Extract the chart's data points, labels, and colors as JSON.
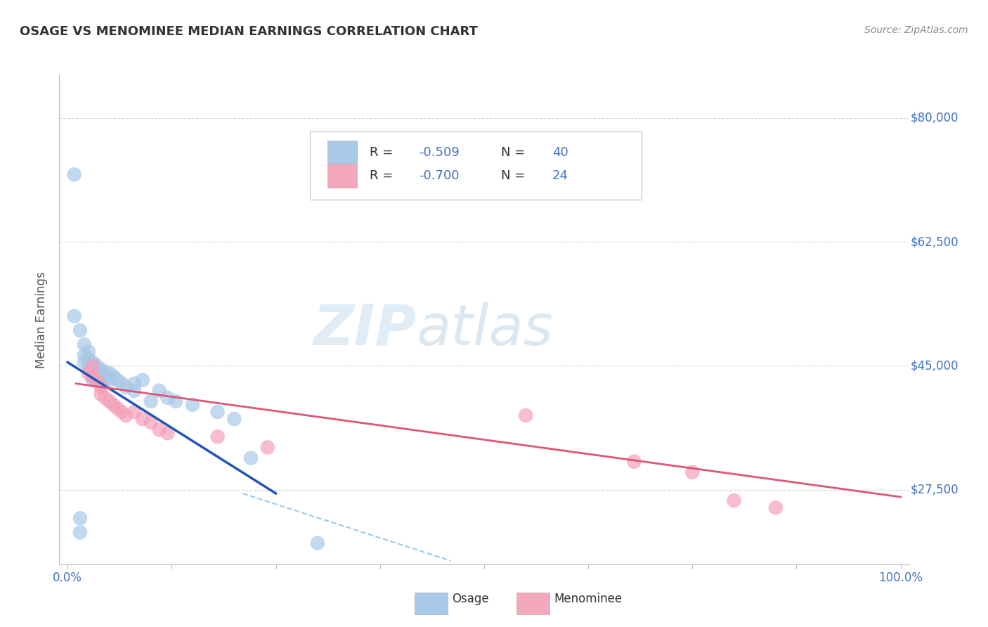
{
  "title": "OSAGE VS MENOMINEE MEDIAN EARNINGS CORRELATION CHART",
  "source": "Source: ZipAtlas.com",
  "ylabel": "Median Earnings",
  "yticks": [
    27500,
    45000,
    62500,
    80000
  ],
  "ytick_labels": [
    "$27,500",
    "$45,000",
    "$62,500",
    "$80,000"
  ],
  "ylim": [
    17000,
    86000
  ],
  "xlim": [
    -0.01,
    1.01
  ],
  "xtick_positions": [
    0.0,
    0.125,
    0.25,
    0.375,
    0.5,
    0.625,
    0.75,
    0.875,
    1.0
  ],
  "watermark_zip": "ZIP",
  "watermark_atlas": "atlas",
  "osage_points": [
    [
      0.008,
      72000
    ],
    [
      0.008,
      52000
    ],
    [
      0.015,
      50000
    ],
    [
      0.02,
      48000
    ],
    [
      0.02,
      46500
    ],
    [
      0.02,
      45500
    ],
    [
      0.025,
      47000
    ],
    [
      0.025,
      46000
    ],
    [
      0.025,
      45000
    ],
    [
      0.03,
      45500
    ],
    [
      0.03,
      44500
    ],
    [
      0.03,
      43500
    ],
    [
      0.03,
      43000
    ],
    [
      0.035,
      45000
    ],
    [
      0.035,
      44000
    ],
    [
      0.04,
      44500
    ],
    [
      0.04,
      43500
    ],
    [
      0.04,
      42500
    ],
    [
      0.045,
      44000
    ],
    [
      0.045,
      43000
    ],
    [
      0.05,
      44000
    ],
    [
      0.05,
      43000
    ],
    [
      0.055,
      43500
    ],
    [
      0.06,
      43000
    ],
    [
      0.065,
      42500
    ],
    [
      0.07,
      42000
    ],
    [
      0.08,
      42500
    ],
    [
      0.08,
      41500
    ],
    [
      0.09,
      43000
    ],
    [
      0.1,
      40000
    ],
    [
      0.11,
      41500
    ],
    [
      0.12,
      40500
    ],
    [
      0.13,
      40000
    ],
    [
      0.15,
      39500
    ],
    [
      0.18,
      38500
    ],
    [
      0.2,
      37500
    ],
    [
      0.015,
      23500
    ],
    [
      0.015,
      21500
    ],
    [
      0.22,
      32000
    ],
    [
      0.3,
      20000
    ]
  ],
  "menominee_points": [
    [
      0.025,
      44000
    ],
    [
      0.03,
      45000
    ],
    [
      0.03,
      43500
    ],
    [
      0.035,
      43000
    ],
    [
      0.04,
      42000
    ],
    [
      0.04,
      41000
    ],
    [
      0.045,
      40500
    ],
    [
      0.05,
      40000
    ],
    [
      0.055,
      39500
    ],
    [
      0.06,
      39000
    ],
    [
      0.065,
      38500
    ],
    [
      0.07,
      38000
    ],
    [
      0.08,
      38500
    ],
    [
      0.09,
      37500
    ],
    [
      0.1,
      37000
    ],
    [
      0.11,
      36000
    ],
    [
      0.12,
      35500
    ],
    [
      0.18,
      35000
    ],
    [
      0.24,
      33500
    ],
    [
      0.55,
      38000
    ],
    [
      0.68,
      31500
    ],
    [
      0.75,
      30000
    ],
    [
      0.8,
      26000
    ],
    [
      0.85,
      25000
    ]
  ],
  "osage_line": {
    "x0": 0.0,
    "y0": 45500,
    "x1": 0.25,
    "y1": 27000
  },
  "menominee_line": {
    "x0": 0.01,
    "y0": 42500,
    "x1": 1.0,
    "y1": 26500
  },
  "dash_line": {
    "x0": 0.21,
    "y0": 27000,
    "x1": 0.46,
    "y1": 17500
  },
  "bg_color": "#ffffff",
  "plot_bg_color": "#ffffff",
  "grid_color": "#cccccc",
  "osage_dot_color": "#a8c8e8",
  "menominee_dot_color": "#f4a0b8",
  "osage_line_color": "#2255bb",
  "menominee_line_color": "#e05575",
  "dash_line_color": "#99ccee",
  "title_color": "#333333",
  "axis_label_color": "#555555",
  "tick_color": "#4472c4",
  "source_color": "#888888",
  "legend_osage_color": "#aac8e8",
  "legend_menominee_color": "#f4a8bc",
  "legend_R_color": "#4472c4",
  "legend_text_color": "#333333"
}
